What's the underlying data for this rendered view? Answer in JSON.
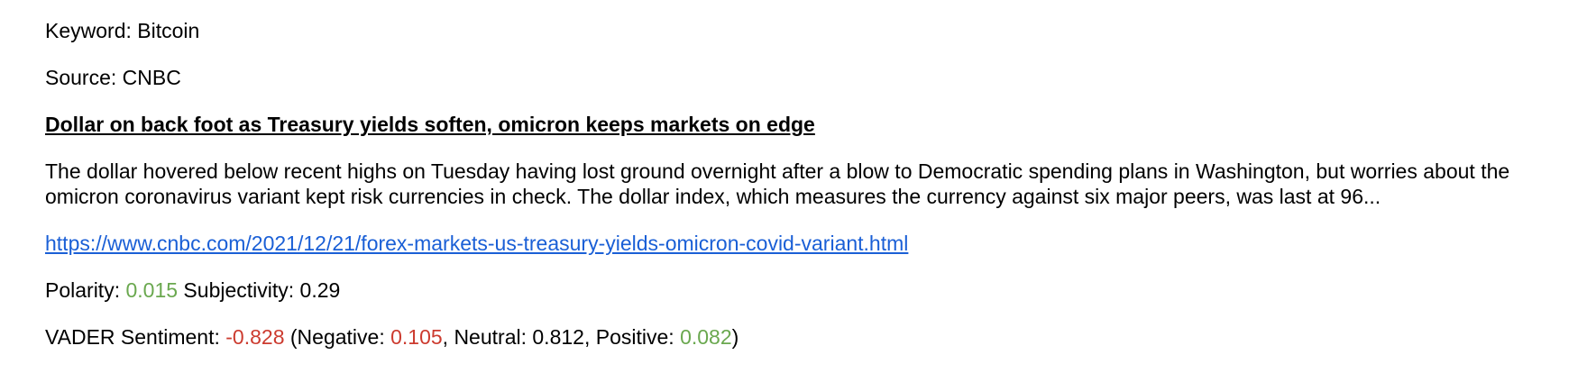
{
  "keyword": {
    "label": "Keyword: ",
    "value": "Bitcoin"
  },
  "source": {
    "label": "Source: ",
    "value": "CNBC"
  },
  "article": {
    "title": "Dollar on back foot as Treasury yields soften, omicron keeps markets on edge",
    "summary": "The dollar hovered below recent highs on Tuesday having lost ground overnight after a blow to Democratic spending plans in Washington, but worries about the omicron coronavirus variant kept risk currencies in check. The dollar index, which measures the currency against six major peers, was last at 96...",
    "url": "https://www.cnbc.com/2021/12/21/forex-markets-us-treasury-yields-omicron-covid-variant.html"
  },
  "polarity": {
    "label": "Polarity: ",
    "value": "0.015",
    "subjectivity_label": " Subjectivity: ",
    "subjectivity_value": "0.29"
  },
  "vader": {
    "label": "VADER Sentiment: ",
    "compound": "-0.828",
    "open": " (",
    "negative_label": "Negative: ",
    "negative_value": "0.105",
    "neutral_label": ", Neutral: ",
    "neutral_value": "0.812",
    "positive_label": ", Positive: ",
    "positive_value": "0.082",
    "close": ")"
  },
  "colors": {
    "positive": "#6aa84f",
    "negative": "#cc3b2f",
    "link": "#1a5fd6"
  }
}
